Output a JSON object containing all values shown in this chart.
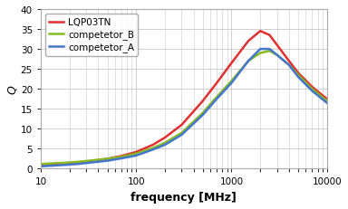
{
  "title": "",
  "xlabel": "frequency [MHz]",
  "ylabel": "Q",
  "xlim": [
    10,
    10000
  ],
  "ylim": [
    0,
    40
  ],
  "yticks": [
    0,
    5,
    10,
    15,
    20,
    25,
    30,
    35,
    40
  ],
  "background_color": "#ffffff",
  "plot_bg_color": "#ffffff",
  "grid_color": "#c8c8c8",
  "series": [
    {
      "label": "LQP03TN",
      "color": "#e03030",
      "linewidth": 1.8,
      "freq": [
        10,
        13,
        18,
        25,
        35,
        50,
        70,
        100,
        150,
        200,
        300,
        500,
        700,
        1000,
        1500,
        2000,
        2500,
        3000,
        4000,
        5000,
        7000,
        10000
      ],
      "Q": [
        1.0,
        1.15,
        1.35,
        1.6,
        2.0,
        2.5,
        3.2,
        4.2,
        6.0,
        7.8,
        11.0,
        17.0,
        21.5,
        26.5,
        32.0,
        34.5,
        33.5,
        31.0,
        27.0,
        24.0,
        20.5,
        17.5
      ]
    },
    {
      "label": "competetor_B",
      "color": "#88bb22",
      "linewidth": 1.8,
      "freq": [
        10,
        13,
        18,
        25,
        35,
        50,
        70,
        100,
        150,
        200,
        300,
        500,
        700,
        1000,
        1500,
        2000,
        2500,
        3000,
        4000,
        5000,
        7000,
        10000
      ],
      "Q": [
        1.2,
        1.35,
        1.5,
        1.75,
        2.1,
        2.5,
        3.0,
        3.8,
        5.2,
        6.5,
        9.0,
        14.0,
        18.0,
        22.0,
        27.0,
        29.0,
        29.5,
        28.5,
        26.0,
        23.5,
        20.0,
        17.0
      ]
    },
    {
      "label": "competetor_A",
      "color": "#4477cc",
      "linewidth": 1.8,
      "freq": [
        10,
        13,
        18,
        25,
        35,
        50,
        70,
        100,
        150,
        200,
        300,
        500,
        700,
        1000,
        1500,
        2000,
        2500,
        3000,
        4000,
        5000,
        7000,
        10000
      ],
      "Q": [
        0.6,
        0.75,
        0.95,
        1.2,
        1.6,
        2.0,
        2.6,
        3.3,
        4.8,
        6.0,
        8.5,
        13.5,
        17.5,
        21.5,
        27.0,
        30.0,
        30.0,
        28.5,
        26.0,
        23.0,
        19.5,
        16.5
      ]
    }
  ],
  "legend_loc": "upper left",
  "legend_fontsize": 7.5,
  "tick_fontsize": 7.5,
  "label_fontsize": 9,
  "xticks": [
    10,
    100,
    1000,
    10000
  ],
  "xtick_labels": [
    "10",
    "100",
    "1000",
    "10000"
  ]
}
